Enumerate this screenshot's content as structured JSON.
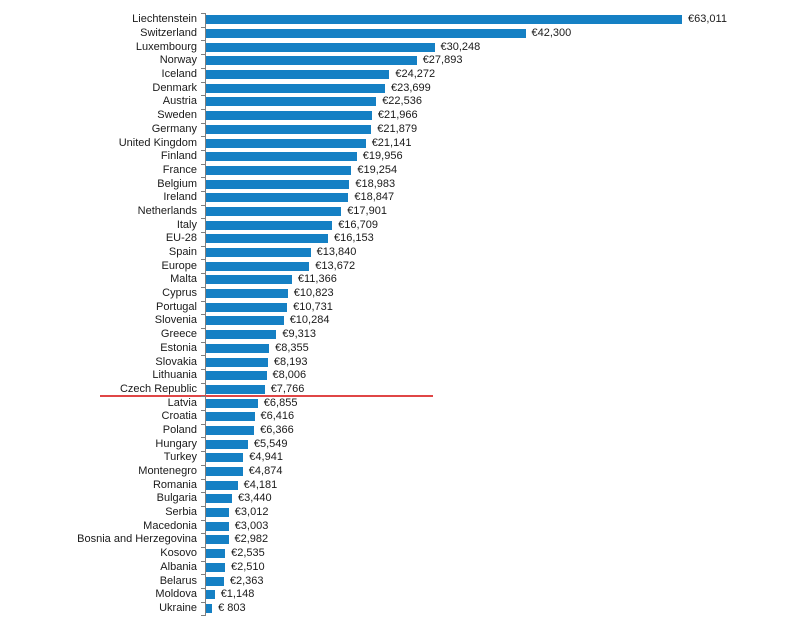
{
  "chart_data": {
    "type": "bar",
    "orientation": "horizontal",
    "title": "",
    "xlabel": "",
    "ylabel": "",
    "xlim": [
      0,
      63011
    ],
    "grid": false,
    "legend": "none",
    "bar_color": "#1580c4",
    "axis_color": "#7f7f7f",
    "text_color": "#1a1a1a",
    "categories": [
      "Liechtenstein",
      "Switzerland",
      "Luxembourg",
      "Norway",
      "Iceland",
      "Denmark",
      "Austria",
      "Sweden",
      "Germany",
      "United Kingdom",
      "Finland",
      "France",
      "Belgium",
      "Ireland",
      "Netherlands",
      "Italy",
      "EU-28",
      "Spain",
      "Europe",
      "Malta",
      "Cyprus",
      "Portugal",
      "Slovenia",
      "Greece",
      "Estonia",
      "Slovakia",
      "Lithuania",
      "Czech Republic",
      "Latvia",
      "Croatia",
      "Poland",
      "Hungary",
      "Turkey",
      "Montenegro",
      "Romania",
      "Bulgaria",
      "Serbia",
      "Macedonia",
      "Bosnia and Herzegovina",
      "Kosovo",
      "Albania",
      "Belarus",
      "Moldova",
      "Ukraine"
    ],
    "values": [
      63011,
      42300,
      30248,
      27893,
      24272,
      23699,
      22536,
      21966,
      21879,
      21141,
      19956,
      19254,
      18983,
      18847,
      17901,
      16709,
      16153,
      13840,
      13672,
      11366,
      10823,
      10731,
      10284,
      9313,
      8355,
      8193,
      8006,
      7766,
      6855,
      6416,
      6366,
      5549,
      4941,
      4874,
      4181,
      3440,
      3012,
      3003,
      2982,
      2535,
      2510,
      2363,
      1148,
      803
    ],
    "value_labels": [
      "€63,011",
      "€42,300",
      "€30,248",
      "€27,893",
      "€24,272",
      "€23,699",
      "€22,536",
      "€21,966",
      "€21,879",
      "€21,141",
      "€19,956",
      "€19,254",
      "€18,983",
      "€18,847",
      "€17,901",
      "€16,709",
      "€16,153",
      "€13,840",
      "€13,672",
      "€11,366",
      "€10,823",
      "€10,731",
      "€10,284",
      "€9,313",
      "€8,355",
      "€8,193",
      "€8,006",
      "€7,766",
      "€6,855",
      "€6,416",
      "€6,366",
      "€5,549",
      "€4,941",
      "€4,874",
      "€4,181",
      "€3,440",
      "€3,012",
      "€3,003",
      "€2,982",
      "€2,535",
      "€2,510",
      "€2,363",
      "€1,148",
      "€ 803"
    ],
    "reference_line": {
      "after_category": "Czech Republic",
      "color": "#e04646"
    }
  }
}
